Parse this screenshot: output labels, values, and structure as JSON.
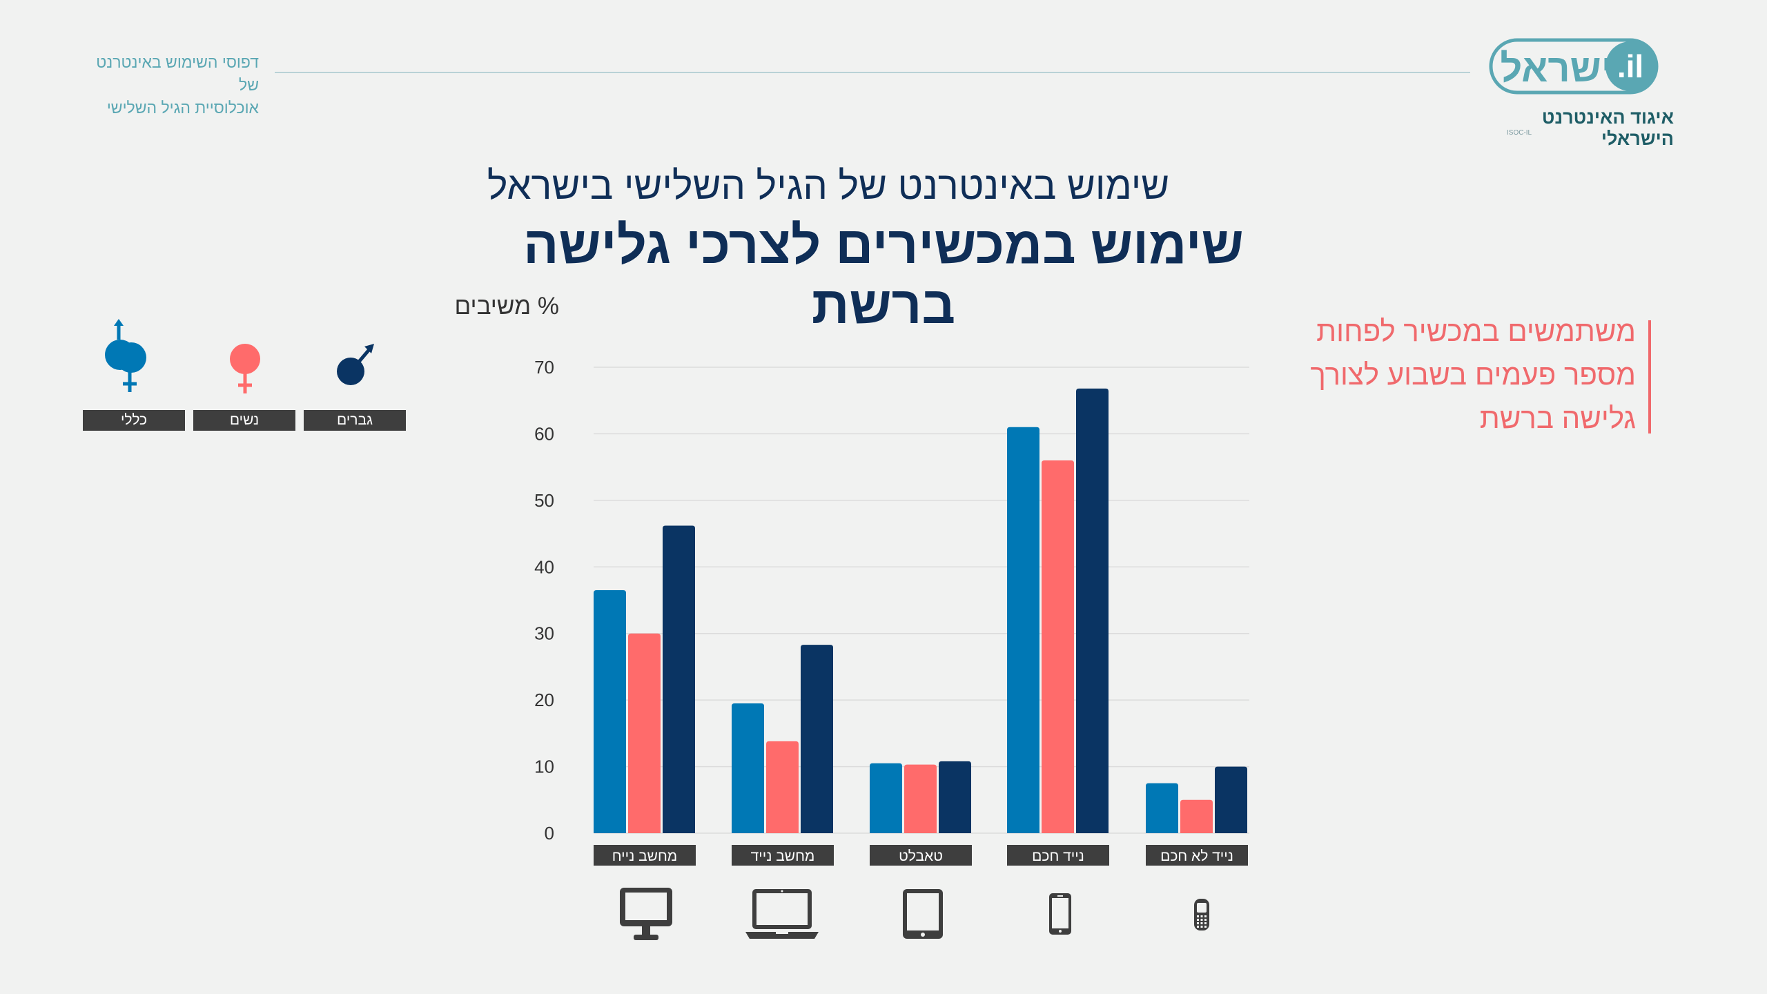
{
  "header": {
    "subtitle_line1": "דפוסי השימוש באינטרנט של",
    "subtitle_line2": "אוכלוסיית הגיל השלישי",
    "logo_text": ".il ישראל",
    "logo_caption": "איגוד האינטרנט הישראלי",
    "logo_small": "ISOC-IL"
  },
  "titles": {
    "small": "שימוש באינטרנט של הגיל השלישי בישראל",
    "big": "שימוש במכשירים לצרכי גלישה ברשת"
  },
  "side_note": {
    "line1": "משתמשים במכשיר לפחות",
    "line2": "מספר פעמים בשבוע  לצורך",
    "line3": "גלישה ברשת"
  },
  "legend": {
    "overall": "כללי",
    "women": "נשים",
    "men": "גברים",
    "overall_icon": "gender-neutral-icon",
    "women_icon": "female-icon",
    "men_icon": "male-icon"
  },
  "colors": {
    "overall": "#0078b5",
    "women": "#ff6b6b",
    "men": "#0a3463",
    "label_bg": "#3e3e3e",
    "grid": "#dcdcdc"
  },
  "chart_data": {
    "type": "bar",
    "ylabel": "% משיבים",
    "ylim": [
      0,
      70
    ],
    "yticks": [
      0,
      10,
      20,
      30,
      40,
      50,
      60,
      70
    ],
    "grid": true,
    "legend_position": "top-left",
    "categories": [
      "מחשב נייח",
      "מחשב נייד",
      "טאבלט",
      "נייד חכם",
      "נייד לא חכם"
    ],
    "category_icons": [
      "desktop-icon",
      "laptop-icon",
      "tablet-icon",
      "smartphone-icon",
      "feature-phone-icon"
    ],
    "series": [
      {
        "name": "כללי",
        "values": [
          36.5,
          19.5,
          10.5,
          61,
          7.5
        ]
      },
      {
        "name": "נשים",
        "values": [
          30,
          13.8,
          10.3,
          56,
          5
        ]
      },
      {
        "name": "גברים",
        "values": [
          46.2,
          28.3,
          10.8,
          66.8,
          10
        ]
      }
    ]
  }
}
